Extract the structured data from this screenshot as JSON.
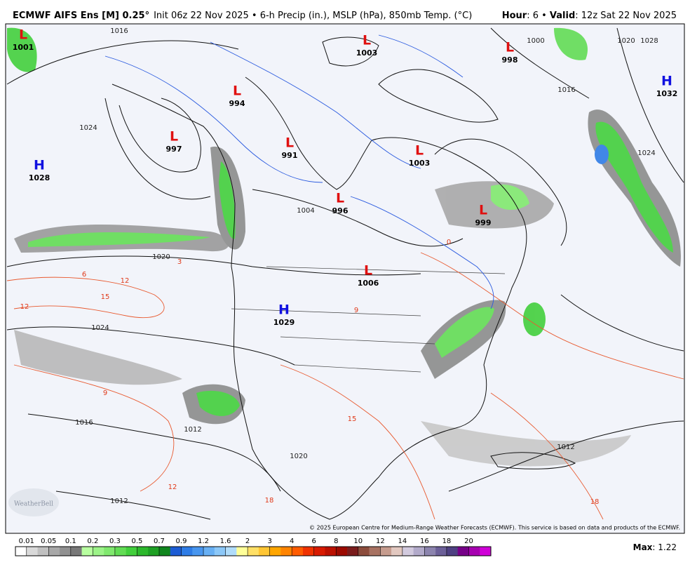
{
  "header": {
    "title": "ECMWF AIFS Ens [M] 0.25°",
    "subtitle": "Init 06z 22 Nov 2025 • 6-h Precip (in.), MSLP (hPa), 850mb Temp. (°C)",
    "valid": [
      {
        "text": "Hour",
        "bold": true
      },
      {
        "text": ": 6 • ",
        "bold": false
      },
      {
        "text": "Valid",
        "bold": true
      },
      {
        "text": ": 12z Sat 22 Nov 2025",
        "bold": false
      }
    ]
  },
  "pressure_centers": [
    {
      "letter": "L",
      "value": "1001",
      "color": "#e01010"
    },
    {
      "letter": "L",
      "value": "994",
      "color": "#e01010"
    },
    {
      "letter": "L",
      "value": "997",
      "color": "#e01010"
    },
    {
      "letter": "L",
      "value": "991",
      "color": "#e01010"
    },
    {
      "letter": "L",
      "value": "996",
      "color": "#e01010"
    },
    {
      "letter": "L",
      "value": "1006",
      "color": "#e01010"
    },
    {
      "letter": "L",
      "value": "1003",
      "color": "#e01010"
    },
    {
      "letter": "L",
      "value": "999",
      "color": "#e01010"
    },
    {
      "letter": "L",
      "value": "998",
      "color": "#e01010"
    },
    {
      "letter": "L",
      "value": "1003",
      "color": "#e01010"
    },
    {
      "letter": "H",
      "value": "1028",
      "color": "#1010e0"
    },
    {
      "letter": "H",
      "value": "1029",
      "color": "#1010e0"
    },
    {
      "letter": "H",
      "value": "1032",
      "color": "#1010e0"
    }
  ],
  "isobar_labels": [
    "1016",
    "1020",
    "1024",
    "1016",
    "1012",
    "1012",
    "1004",
    "1000",
    "1028",
    "1020",
    "1016",
    "1024",
    "1012",
    "1020",
    "1024"
  ],
  "temperature_labels": [
    "15",
    "12",
    "9",
    "6",
    "3",
    "12",
    "18",
    "15",
    "9",
    "0",
    "18",
    "12"
  ],
  "logo": "WeatherBell",
  "copyright": "© 2025 European Centre for Medium-Range Weather Forecasts (ECMWF). This service is based on data and products of the ECMWF.",
  "colorbar": {
    "ticks": [
      0.01,
      0.05,
      0.1,
      0.2,
      0.3,
      0.5,
      0.7,
      0.9,
      1.2,
      1.6,
      2,
      3,
      4,
      6,
      8,
      10,
      12,
      14,
      16,
      18,
      20
    ],
    "colors": [
      "#ffffff",
      "#d9d9d9",
      "#c0c0c0",
      "#a8a8a8",
      "#909090",
      "#787878",
      "#b8ffa0",
      "#9cf388",
      "#80e86e",
      "#62dc54",
      "#42cf3c",
      "#2cb82c",
      "#1ea024",
      "#10861e",
      "#1c5cd4",
      "#2e7ce6",
      "#4896ef",
      "#68b0f4",
      "#8cc8f8",
      "#b0dcfa",
      "#ffff99",
      "#ffe066",
      "#ffc634",
      "#ffa600",
      "#ff8400",
      "#ff5c00",
      "#f03200",
      "#d81a00",
      "#bb1000",
      "#9c0a00",
      "#7a1c1c",
      "#8c4c3c",
      "#a87262",
      "#c69c8e",
      "#e2c8c0",
      "#d2cade",
      "#b2aaca",
      "#8c84ae",
      "#6c6098",
      "#4e4082",
      "#760088",
      "#a600b0",
      "#d000d8"
    ]
  },
  "max": {
    "label": "Max",
    "value": "1.22"
  }
}
